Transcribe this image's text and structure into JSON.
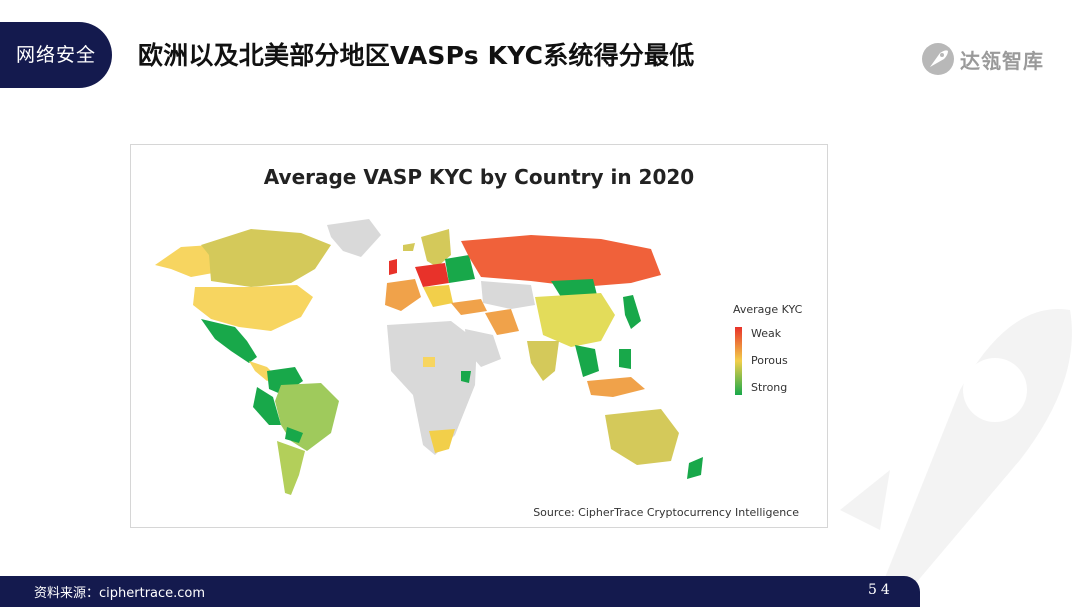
{
  "header": {
    "section_tag": "网络安全",
    "title": "欧洲以及北美部分地区VASPs KYC系统得分最低",
    "logo_text": "达瓴智库"
  },
  "map": {
    "title": "Average VASP KYC by Country in 2020",
    "source": "Source: CipherTrace Cryptocurrency Intelligence",
    "legend": {
      "title": "Average KYC",
      "items": [
        "Weak",
        "Porous",
        "Strong"
      ],
      "colors": {
        "weak": "#e8322a",
        "porous": "#f2cf4a",
        "strong": "#18a84a",
        "no_data": "#d9d9d9"
      }
    }
  },
  "footer": {
    "source": "资料来源：ciphertrace.com",
    "page_number": "54"
  }
}
